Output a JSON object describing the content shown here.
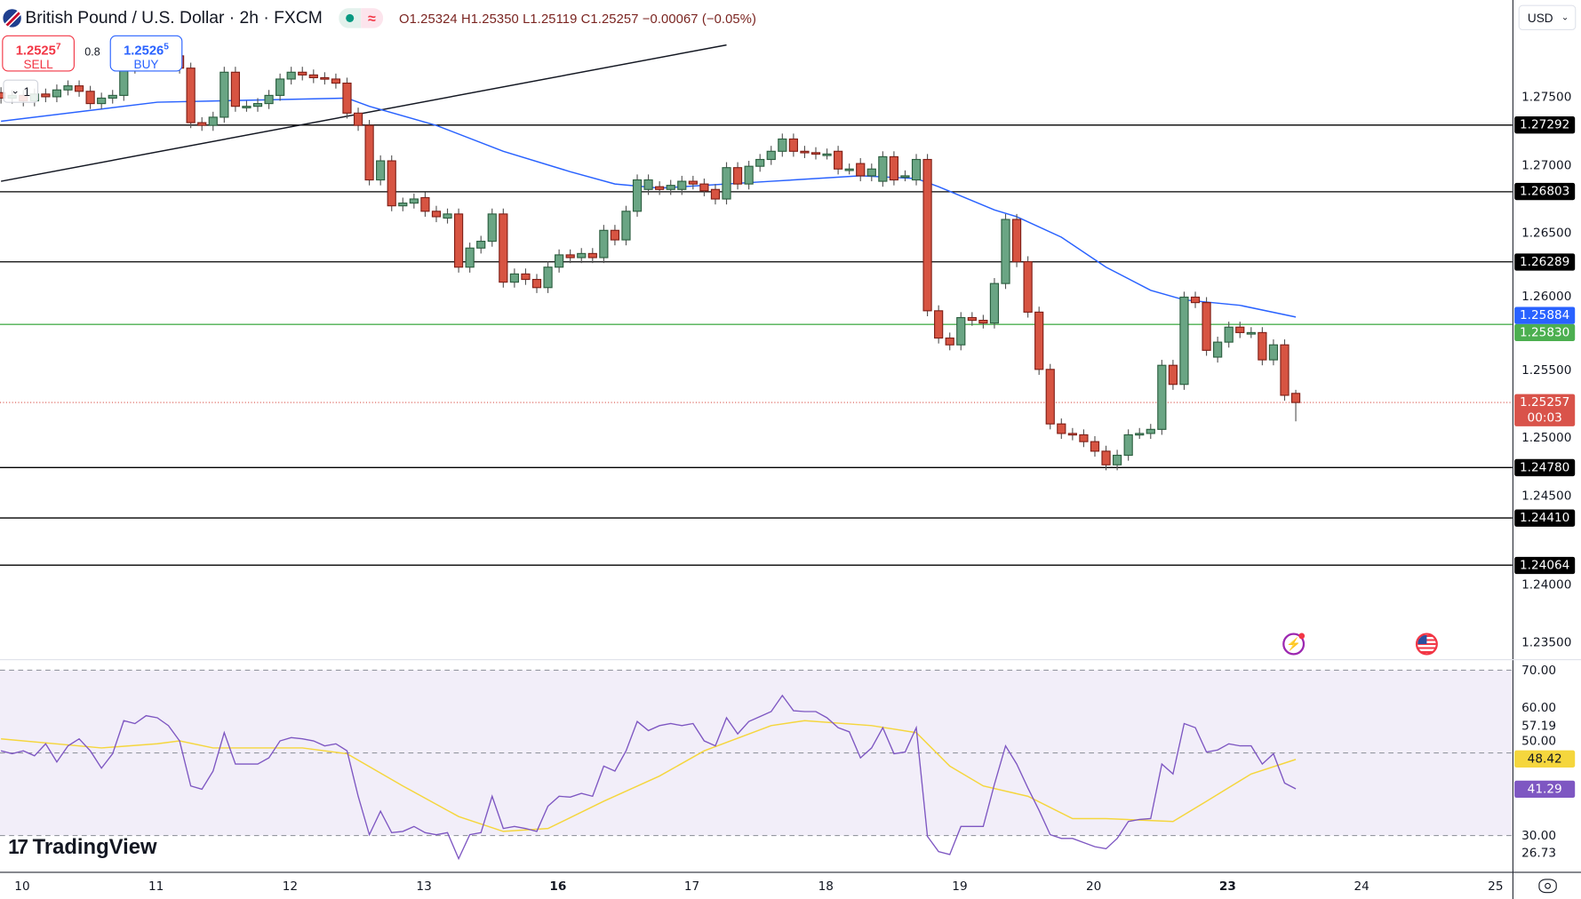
{
  "header": {
    "title": "British Pound / U.S. Dollar · 2h · FXCM",
    "ohlc": {
      "o_label": "O",
      "o": "1.25324",
      "h_label": "H",
      "h": "1.25350",
      "l_label": "L",
      "l": "1.25119",
      "c_label": "C",
      "c": "1.25257",
      "change": "−0.00067 (−0.05%)"
    },
    "market_status_icon": "green-dot",
    "delay_icon": "≈"
  },
  "trade": {
    "sell_price": "1.2525",
    "sell_sup": "7",
    "sell_label": "SELL",
    "spread": "0.8",
    "buy_price": "1.2526",
    "buy_sup": "5",
    "buy_label": "BUY",
    "collapse_label": "1"
  },
  "currency_select": "USD",
  "logo": "TradingView",
  "colors": {
    "up": "#6aa584",
    "up_border": "#2b5e3f",
    "down": "#d75442",
    "down_border": "#7f1f17",
    "ma": "#2962ff",
    "level": "#000000",
    "support_green": "#4caf50",
    "rsi": "#7e57c2",
    "rsi_ma": "#f5d63d",
    "current": "#d9534a"
  },
  "chart_data": [
    {
      "type": "candlestick",
      "title": "British Pound / U.S. Dollar · 2h · FXCM",
      "ylim": [
        1.232,
        1.2822
      ],
      "y_ticks": [
        "1.27500",
        "1.27000",
        "1.26500",
        "1.26000",
        "1.25500",
        "1.25000",
        "1.24500",
        "1.24000",
        "1.23500"
      ],
      "y_tick_values": [
        1.275,
        1.27,
        1.265,
        1.26,
        1.255,
        1.25,
        1.245,
        1.24,
        1.235
      ],
      "x_ticks": [
        {
          "label": "10",
          "i": 2
        },
        {
          "label": "11",
          "i": 14
        },
        {
          "label": "12",
          "i": 26
        },
        {
          "label": "13",
          "i": 38
        },
        {
          "label": "16",
          "i": 50,
          "bold": true
        },
        {
          "label": "17",
          "i": 62
        },
        {
          "label": "18",
          "i": 74
        },
        {
          "label": "19",
          "i": 86
        },
        {
          "label": "20",
          "i": 98
        },
        {
          "label": "23",
          "i": 110,
          "bold": true
        },
        {
          "label": "24",
          "i": 122
        },
        {
          "label": "25",
          "i": 134
        }
      ],
      "candles_oc": [
        [
          1.2753,
          1.2749
        ],
        [
          1.2749,
          1.2751
        ],
        [
          1.2751,
          1.2747
        ],
        [
          1.2747,
          1.2752
        ],
        [
          1.2752,
          1.275
        ],
        [
          1.275,
          1.2755
        ],
        [
          1.2755,
          1.2758
        ],
        [
          1.2758,
          1.2754
        ],
        [
          1.2754,
          1.2745
        ],
        [
          1.2745,
          1.2749
        ],
        [
          1.2749,
          1.2751
        ],
        [
          1.2751,
          1.2771
        ],
        [
          1.2771,
          1.2776
        ],
        [
          1.2776,
          1.2779
        ],
        [
          1.2779,
          1.2777
        ],
        [
          1.2777,
          1.278
        ],
        [
          1.278,
          1.2771
        ],
        [
          1.2771,
          1.2731
        ],
        [
          1.2731,
          1.2729
        ],
        [
          1.2729,
          1.2735
        ],
        [
          1.2735,
          1.2768
        ],
        [
          1.2768,
          1.2743
        ],
        [
          1.2743,
          1.2743
        ],
        [
          1.2743,
          1.2745
        ],
        [
          1.2745,
          1.2751
        ],
        [
          1.2751,
          1.2763
        ],
        [
          1.2763,
          1.2768
        ],
        [
          1.2768,
          1.2766
        ],
        [
          1.2766,
          1.2764
        ],
        [
          1.2764,
          1.2763
        ],
        [
          1.2763,
          1.276
        ],
        [
          1.276,
          1.2738
        ],
        [
          1.2738,
          1.2729
        ],
        [
          1.2729,
          1.2689
        ],
        [
          1.2689,
          1.2703
        ],
        [
          1.2703,
          1.267
        ],
        [
          1.267,
          1.2672
        ],
        [
          1.2672,
          1.2675
        ],
        [
          1.2676,
          1.2666
        ],
        [
          1.2666,
          1.2662
        ],
        [
          1.2661,
          1.2664
        ],
        [
          1.2664,
          1.2625
        ],
        [
          1.2625,
          1.2639
        ],
        [
          1.2639,
          1.2644
        ],
        [
          1.2644,
          1.2664
        ],
        [
          1.2664,
          1.2614
        ],
        [
          1.2614,
          1.262
        ],
        [
          1.262,
          1.2616
        ],
        [
          1.2616,
          1.261
        ],
        [
          1.261,
          1.2625
        ],
        [
          1.2625,
          1.2634
        ],
        [
          1.2634,
          1.2632
        ],
        [
          1.2632,
          1.2635
        ],
        [
          1.2635,
          1.2632
        ],
        [
          1.2632,
          1.2652
        ],
        [
          1.2652,
          1.2645
        ],
        [
          1.2645,
          1.2666
        ],
        [
          1.2666,
          1.2689
        ],
        [
          1.2682,
          1.2689
        ],
        [
          1.2684,
          1.2682
        ],
        [
          1.2682,
          1.2685
        ],
        [
          1.2682,
          1.2688
        ],
        [
          1.2688,
          1.2686
        ],
        [
          1.2686,
          1.2681
        ],
        [
          1.2682,
          1.2675
        ],
        [
          1.2675,
          1.2698
        ],
        [
          1.2698,
          1.2686
        ],
        [
          1.2686,
          1.2699
        ],
        [
          1.2699,
          1.2704
        ],
        [
          1.2704,
          1.271
        ],
        [
          1.271,
          1.2719
        ],
        [
          1.2719,
          1.271
        ],
        [
          1.271,
          1.2709
        ],
        [
          1.2709,
          1.2708
        ],
        [
          1.2708,
          1.2708
        ],
        [
          1.271,
          1.2697
        ],
        [
          1.2697,
          1.2697
        ],
        [
          1.2701,
          1.2692
        ],
        [
          1.2692,
          1.2697
        ],
        [
          1.2688,
          1.2706
        ],
        [
          1.2706,
          1.2689
        ],
        [
          1.2692,
          1.2692
        ],
        [
          1.2689,
          1.2704
        ],
        [
          1.2704,
          1.2593
        ],
        [
          1.2593,
          1.2573
        ],
        [
          1.2573,
          1.2568
        ],
        [
          1.2568,
          1.2588
        ],
        [
          1.2588,
          1.2586
        ],
        [
          1.2586,
          1.2584
        ],
        [
          1.2584,
          1.2613
        ],
        [
          1.2613,
          1.266
        ],
        [
          1.266,
          1.2629
        ],
        [
          1.2629,
          1.2592
        ],
        [
          1.2592,
          1.255
        ],
        [
          1.255,
          1.251
        ],
        [
          1.251,
          1.2503
        ],
        [
          1.2503,
          1.2502
        ],
        [
          1.2502,
          1.2497
        ],
        [
          1.2497,
          1.249
        ],
        [
          1.249,
          1.248
        ],
        [
          1.248,
          1.2487
        ],
        [
          1.2487,
          1.2502
        ],
        [
          1.2503,
          1.2503
        ],
        [
          1.2503,
          1.2506
        ],
        [
          1.2506,
          1.2553
        ],
        [
          1.2553,
          1.2539
        ],
        [
          1.2539,
          1.2603
        ],
        [
          1.2603,
          1.2599
        ],
        [
          1.2599,
          1.2564
        ],
        [
          1.2559,
          1.257
        ],
        [
          1.257,
          1.2581
        ],
        [
          1.2581,
          1.2577
        ],
        [
          1.2577,
          1.2577
        ],
        [
          1.2577,
          1.2557
        ],
        [
          1.2557,
          1.2568
        ],
        [
          1.2568,
          1.2531
        ],
        [
          1.25324,
          1.25257
        ]
      ],
      "last_candle": {
        "open": 1.25324,
        "high": 1.2535,
        "low": 1.25119,
        "close": 1.25257
      },
      "moving_average": {
        "name": "MA",
        "last": "1.25884",
        "points": [
          [
            0,
            1.2732
          ],
          [
            9,
            1.2741
          ],
          [
            14,
            1.2746
          ],
          [
            31,
            1.2749
          ],
          [
            33,
            1.2743
          ],
          [
            39,
            1.2729
          ],
          [
            45,
            1.271
          ],
          [
            51,
            1.2695
          ],
          [
            55,
            1.2686
          ],
          [
            59,
            1.2683
          ],
          [
            69,
            1.2688
          ],
          [
            77,
            1.2692
          ],
          [
            82,
            1.269
          ],
          [
            84,
            1.2684
          ],
          [
            89,
            1.2667
          ],
          [
            91,
            1.2662
          ],
          [
            95,
            1.2647
          ],
          [
            99,
            1.2625
          ],
          [
            103,
            1.2608
          ],
          [
            106,
            1.2601
          ],
          [
            111,
            1.2597
          ],
          [
            116,
            1.25884
          ]
        ]
      },
      "trendline": [
        [
          0,
          1.2688
        ],
        [
          65,
          1.2788
        ]
      ],
      "levels": [
        {
          "label": "1.27292",
          "value": 1.27292,
          "kind": "black"
        },
        {
          "label": "1.26803",
          "value": 1.26803,
          "kind": "black"
        },
        {
          "label": "1.26289",
          "value": 1.26289,
          "kind": "black"
        },
        {
          "label": "1.25830",
          "value": 1.2583,
          "kind": "green"
        },
        {
          "label": "1.24780",
          "value": 1.2478,
          "kind": "black"
        },
        {
          "label": "1.24410",
          "value": 1.2441,
          "kind": "black"
        },
        {
          "label": "1.24064",
          "value": 1.24064,
          "kind": "black"
        }
      ],
      "ma_tag": {
        "label": "1.25884",
        "value": 1.25884
      },
      "current_price": {
        "label": "1.25257",
        "value": 1.25257,
        "countdown": "00:03"
      }
    },
    {
      "type": "line",
      "title": "RSI",
      "ylim": [
        22,
        73
      ],
      "y_ticks": [
        "70.00",
        "60.00",
        "50.00",
        "30.00"
      ],
      "y_tick_values": [
        70,
        60,
        50,
        30
      ],
      "band": [
        30,
        70
      ],
      "extra_labels": [
        {
          "label": "57.19",
          "value": 57.19
        },
        {
          "label": "26.73",
          "value": 26.73
        }
      ],
      "rsi_tag": {
        "label": "41.29",
        "value": 41.29
      },
      "rsi_ma_tag": {
        "label": "48.42",
        "value": 48.42
      },
      "rsi": [
        50.5,
        49.8,
        50.5,
        49.3,
        52.2,
        47.8,
        51.7,
        53.4,
        50.5,
        46.3,
        49.8,
        57.8,
        57.1,
        59.0,
        58.5,
        56.6,
        52.9,
        42.0,
        41.2,
        45.6,
        54.9,
        47.3,
        47.3,
        47.3,
        48.8,
        52.9,
        53.7,
        53.4,
        52.9,
        51.7,
        52.2,
        50.5,
        39.5,
        30.2,
        35.9,
        30.7,
        31.0,
        32.2,
        30.7,
        30.2,
        30.7,
        24.4,
        30.2,
        30.7,
        39.5,
        31.7,
        32.2,
        31.7,
        31.0,
        37.1,
        39.5,
        39.3,
        40.2,
        39.5,
        46.8,
        45.6,
        50.5,
        57.6,
        55.4,
        56.6,
        57.1,
        56.6,
        57.1,
        52.9,
        51.7,
        58.5,
        54.6,
        57.6,
        58.8,
        60.0,
        63.9,
        60.2,
        60.0,
        60.0,
        58.5,
        56.1,
        55.1,
        48.8,
        51.2,
        56.1,
        49.8,
        50.2,
        56.1,
        29.8,
        26.1,
        25.4,
        32.2,
        32.2,
        32.2,
        42.4,
        51.7,
        47.3,
        41.5,
        36.1,
        30.2,
        29.3,
        29.3,
        28.3,
        27.3,
        26.8,
        29.3,
        33.4,
        33.9,
        34.1,
        47.3,
        44.9,
        57.1,
        56.1,
        50.2,
        50.7,
        52.2,
        51.7,
        51.7,
        47.3,
        49.8,
        42.7,
        41.29
      ],
      "rsi_ma": [
        [
          0,
          53.4
        ],
        [
          9,
          51.2
        ],
        [
          14,
          52.2
        ],
        [
          16,
          52.9
        ],
        [
          19,
          51.2
        ],
        [
          27,
          51.2
        ],
        [
          31,
          49.8
        ],
        [
          36,
          42.0
        ],
        [
          41,
          34.6
        ],
        [
          45,
          31.0
        ],
        [
          49,
          31.7
        ],
        [
          54,
          38.3
        ],
        [
          59,
          44.4
        ],
        [
          63,
          50.5
        ],
        [
          69,
          56.6
        ],
        [
          72,
          57.8
        ],
        [
          78,
          56.6
        ],
        [
          82,
          54.9
        ],
        [
          85,
          46.8
        ],
        [
          88,
          42.0
        ],
        [
          92,
          39.5
        ],
        [
          96,
          34.1
        ],
        [
          99,
          34.1
        ],
        [
          105,
          33.4
        ],
        [
          108,
          38.3
        ],
        [
          112,
          44.9
        ],
        [
          116,
          48.42
        ]
      ]
    }
  ]
}
